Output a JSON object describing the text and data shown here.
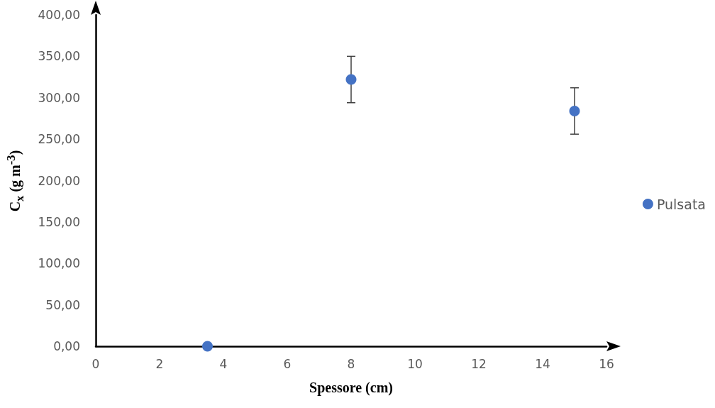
{
  "chart_data": {
    "type": "scatter",
    "xlabel": "Spessore (cm)",
    "ylabel": "C$_{x}$ (g m$^{-3}$)",
    "x": [
      3.5,
      8,
      15
    ],
    "series": [
      {
        "name": "Pulsata",
        "color": "#4472c4",
        "values": [
          0,
          322,
          284
        ],
        "errors": [
          null,
          28,
          28
        ]
      }
    ],
    "xlim": [
      0,
      16
    ],
    "xticks": [
      0,
      2,
      4,
      6,
      8,
      10,
      12,
      14,
      16
    ],
    "ylim": [
      0,
      400
    ],
    "yticks": [
      {
        "value": 0,
        "label": "0,00"
      },
      {
        "value": 50,
        "label": "50,00"
      },
      {
        "value": 100,
        "label": "100,00"
      },
      {
        "value": 150,
        "label": "150,00"
      },
      {
        "value": 200,
        "label": "200,00"
      },
      {
        "value": 250,
        "label": "250,00"
      },
      {
        "value": 300,
        "label": "300,00"
      },
      {
        "value": 350,
        "label": "350,00"
      },
      {
        "value": 400,
        "label": "400,00"
      }
    ],
    "grid": false,
    "legend": "right",
    "marker": "circle"
  }
}
